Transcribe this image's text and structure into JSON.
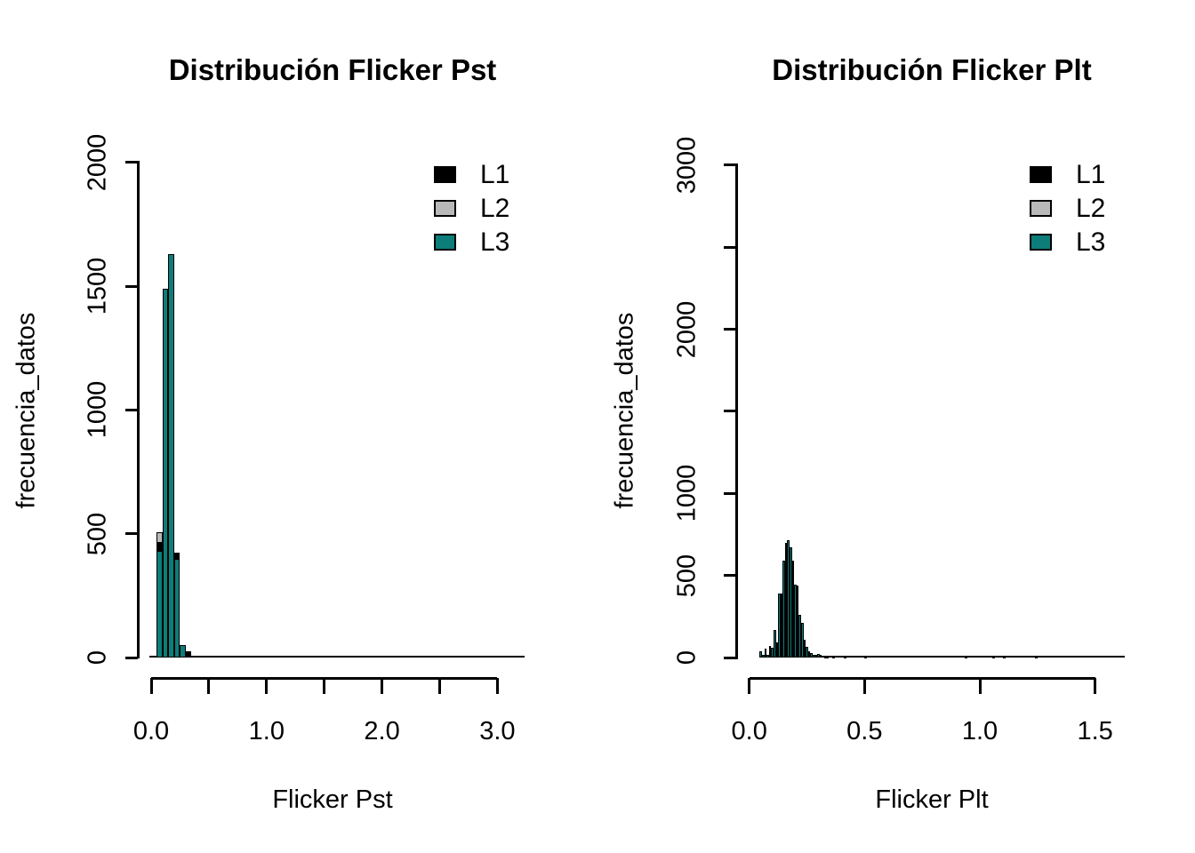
{
  "page": {
    "background": "#ffffff"
  },
  "colors": {
    "black": "#000000",
    "gray": "#b9b9b9",
    "teal": "#0d7d79"
  },
  "legend": {
    "items": [
      {
        "label": "L1",
        "color_key": "black"
      },
      {
        "label": "L2",
        "color_key": "gray"
      },
      {
        "label": "L3",
        "color_key": "teal"
      }
    ]
  },
  "chart_data": [
    {
      "type": "bar",
      "subtype": "overlaid-histograms",
      "title": "Distribución Flicker Pst",
      "xlabel": "Flicker Pst",
      "ylabel": "frecuencia_datos",
      "xlim": [
        0.0,
        3.0
      ],
      "ylim": [
        0,
        2000
      ],
      "x_ticks": [
        0.0,
        0.5,
        1.0,
        1.5,
        2.0,
        2.5,
        3.0
      ],
      "x_tick_labels": [
        "0.0",
        "",
        "1.0",
        "",
        "2.0",
        "",
        "3.0"
      ],
      "y_ticks": [
        0,
        500,
        1000,
        1500,
        2000
      ],
      "y_tick_labels": [
        "0",
        "500",
        "1000",
        "1500",
        "2000"
      ],
      "legend_position": "top-right",
      "grid": false,
      "series_names": [
        "L1",
        "L2",
        "L3"
      ],
      "bin_width": 0.05,
      "bins": [
        {
          "start": 0.05,
          "segments": [
            {
              "series": "L2",
              "color_key": "gray",
              "value": 506
            },
            {
              "series": "L1",
              "color_key": "black",
              "value": 466
            },
            {
              "series": "L3",
              "color_key": "teal",
              "value": 430
            }
          ]
        },
        {
          "start": 0.1,
          "segments": [
            {
              "series": "L3",
              "color_key": "teal",
              "value": 1490
            }
          ]
        },
        {
          "start": 0.15,
          "segments": [
            {
              "series": "L3",
              "color_key": "teal",
              "value": 1630
            }
          ]
        },
        {
          "start": 0.2,
          "segments": [
            {
              "series": "L1",
              "color_key": "black",
              "value": 425
            },
            {
              "series": "L3",
              "color_key": "teal",
              "value": 400
            }
          ]
        },
        {
          "start": 0.25,
          "segments": [
            {
              "series": "L3",
              "color_key": "teal",
              "value": 50
            }
          ]
        },
        {
          "start": 0.3,
          "segments": [
            {
              "series": "L1",
              "color_key": "black",
              "value": 24
            }
          ]
        },
        {
          "start": 0.35,
          "segments": [
            {
              "series": "L1",
              "color_key": "black",
              "value": 8
            }
          ]
        }
      ],
      "near_zero_tail_extent": [
        0.0,
        3.2
      ]
    },
    {
      "type": "bar",
      "subtype": "overlaid-histograms",
      "title": "Distribución Flicker Plt",
      "xlabel": "Flicker Plt",
      "ylabel": "frecuencia_datos",
      "xlim": [
        0.0,
        1.5
      ],
      "ylim": [
        0,
        3000
      ],
      "x_ticks": [
        0.0,
        0.5,
        1.0,
        1.5
      ],
      "x_tick_labels": [
        "0.0",
        "0.5",
        "1.0",
        "1.5"
      ],
      "y_ticks": [
        0,
        500,
        1000,
        1500,
        2000,
        2500,
        3000
      ],
      "y_tick_labels": [
        "0",
        "500",
        "1000",
        "",
        "2000",
        "",
        "3000"
      ],
      "legend_position": "top-right",
      "grid": false,
      "series_names": [
        "L1",
        "L2",
        "L3"
      ],
      "bin_width": 0.01,
      "bin_starts": [
        0.045,
        0.055,
        0.065,
        0.075,
        0.085,
        0.095,
        0.105,
        0.115,
        0.125,
        0.135,
        0.145,
        0.155,
        0.165,
        0.175,
        0.185,
        0.195,
        0.205,
        0.215,
        0.225,
        0.235,
        0.245,
        0.255,
        0.265,
        0.275,
        0.285,
        0.295,
        0.305,
        0.315,
        0.325,
        0.335,
        0.36,
        0.41,
        0.5,
        0.61,
        0.645,
        0.78,
        0.935,
        1.055,
        1.1,
        1.24,
        1.355
      ],
      "bin_values": [
        36,
        18,
        54,
        18,
        72,
        58,
        170,
        90,
        390,
        390,
        590,
        700,
        715,
        673,
        590,
        442,
        437,
        261,
        211,
        108,
        63,
        36,
        27,
        18,
        15,
        20,
        15,
        10,
        8,
        6,
        8,
        6,
        8,
        10,
        12,
        10,
        8,
        8,
        8,
        6,
        10
      ],
      "bin_color_key": "teal",
      "near_zero_tail_extent": [
        0.045,
        1.63
      ]
    }
  ]
}
